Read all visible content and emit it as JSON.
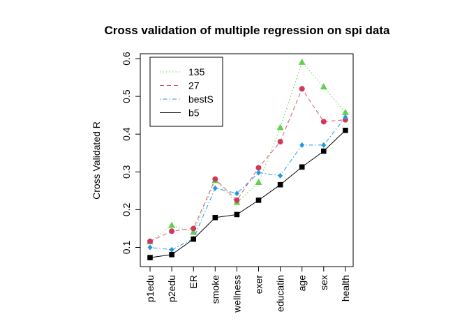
{
  "chart_data": {
    "type": "line",
    "title": "Cross validation of multiple regression on spi data",
    "xlabel": "",
    "ylabel": "Cross Validated R",
    "ylim": [
      0.05,
      0.6
    ],
    "yticks": [
      0.1,
      0.2,
      0.3,
      0.4,
      0.5,
      0.6
    ],
    "grid": false,
    "legend_position": "top-left",
    "categories": [
      "p1edu",
      "p2edu",
      "ER",
      "smoke",
      "wellness",
      "exer",
      "educatin",
      "age",
      "sex",
      "health"
    ],
    "series": [
      {
        "name": "135",
        "color": "#61D04F",
        "line_style": "dotted",
        "marker": "triangle",
        "values": [
          0.115,
          0.158,
          0.14,
          0.277,
          0.219,
          0.272,
          0.417,
          0.59,
          0.525,
          0.457
        ]
      },
      {
        "name": "27",
        "color": "#DF536B",
        "marker_color": "#CD3A5C",
        "line_style": "dashed",
        "marker": "circle",
        "values": [
          0.116,
          0.143,
          0.15,
          0.281,
          0.225,
          0.311,
          0.38,
          0.52,
          0.433,
          0.438
        ]
      },
      {
        "name": "bestS",
        "color": "#2297E6",
        "line_style": "dotdash",
        "marker": "diamond",
        "values": [
          0.1,
          0.094,
          0.123,
          0.257,
          0.243,
          0.298,
          0.29,
          0.371,
          0.371,
          0.445
        ]
      },
      {
        "name": "b5",
        "color": "#000000",
        "line_style": "solid",
        "marker": "square",
        "values": [
          0.073,
          0.081,
          0.122,
          0.179,
          0.187,
          0.225,
          0.266,
          0.313,
          0.355,
          0.41
        ]
      }
    ]
  }
}
